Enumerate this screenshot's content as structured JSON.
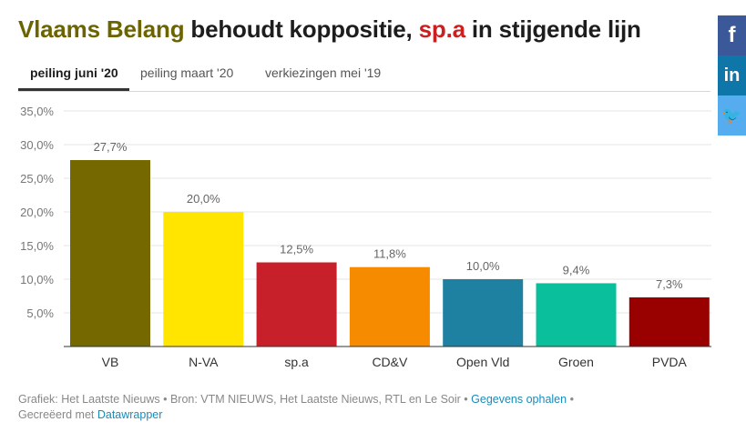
{
  "title": {
    "part1": "Vlaams Belang",
    "part2": " behoudt koppositie, ",
    "part3": "sp.a",
    "part4": " in stijgende lijn"
  },
  "tabs": [
    "peiling juni '20",
    "peiling maart '20",
    "verkiezingen mei '19"
  ],
  "social": {
    "facebook": "f",
    "linkedin": "in",
    "twitter": "🐦"
  },
  "footer": {
    "source": "Grafiek: Het Laatste Nieuws • Bron: VTM NIEUWS, Het Laatste Nieuws, RTL en Le Soir • ",
    "get_data": "Gegevens ophalen",
    "sep": " •",
    "made_with": "Gecreëerd met ",
    "datawrapper": "Datawrapper"
  },
  "colors": {
    "VB": "#756800",
    "N-VA": "#ffe500",
    "sp.a": "#c8202a",
    "CD&V": "#f68b00",
    "Open Vld": "#1e81a1",
    "Groen": "#0abf9c",
    "PVDA": "#990000"
  },
  "chart_data": {
    "type": "bar",
    "categories": [
      "VB",
      "N-VA",
      "sp.a",
      "CD&V",
      "Open Vld",
      "Groen",
      "PVDA"
    ],
    "values": [
      27.7,
      20.0,
      12.5,
      11.8,
      10.0,
      9.4,
      7.3
    ],
    "value_labels": [
      "27,7%",
      "20,0%",
      "12,5%",
      "11,8%",
      "10,0%",
      "9,4%",
      "7,3%"
    ],
    "yticks": [
      5,
      10,
      15,
      20,
      25,
      30,
      35
    ],
    "ytick_labels": [
      "5,0%",
      "10,0%",
      "15,0%",
      "20,0%",
      "25,0%",
      "30,0%",
      "35,0%"
    ],
    "ylim": [
      0,
      35
    ],
    "grid": true,
    "title": "",
    "xlabel": "",
    "ylabel": ""
  }
}
